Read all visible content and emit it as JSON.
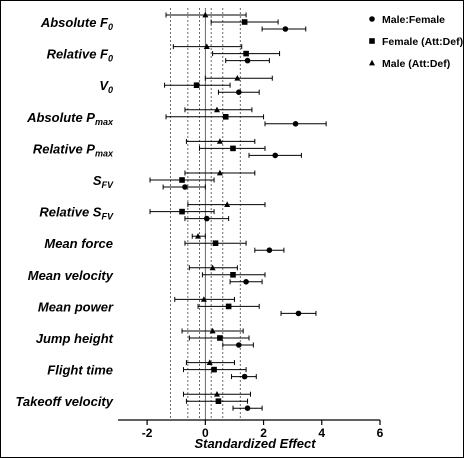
{
  "chart_data": {
    "type": "forest",
    "xlabel": "Standardized Effect",
    "xlim": [
      -3,
      6
    ],
    "xticks": [
      -2,
      0,
      2,
      4,
      6
    ],
    "reference_lines": {
      "solid": [
        0
      ],
      "dashed": [
        -1.2,
        -0.6,
        -0.2,
        0.2,
        0.6,
        1.2
      ]
    },
    "legend_position": "top-right",
    "series": [
      {
        "name": "Male:Female",
        "marker": "circle"
      },
      {
        "name": "Female (Att:Def)",
        "marker": "square"
      },
      {
        "name": "Male (Att:Def)",
        "marker": "triangle"
      }
    ],
    "categories": [
      {
        "label": "Absolute F",
        "sub": "0",
        "values": [
          {
            "series": "Male (Att:Def)",
            "est": 0.0,
            "lo": -1.35,
            "hi": 1.4
          },
          {
            "series": "Female (Att:Def)",
            "est": 1.35,
            "lo": 0.2,
            "hi": 2.5
          },
          {
            "series": "Male:Female",
            "est": 2.75,
            "lo": 1.95,
            "hi": 3.45
          }
        ]
      },
      {
        "label": "Relative F",
        "sub": "0",
        "values": [
          {
            "series": "Male (Att:Def)",
            "est": 0.05,
            "lo": -1.1,
            "hi": 1.25
          },
          {
            "series": "Female (Att:Def)",
            "est": 1.4,
            "lo": 0.25,
            "hi": 2.55
          },
          {
            "series": "Male:Female",
            "est": 1.45,
            "lo": 0.7,
            "hi": 2.2
          }
        ]
      },
      {
        "label": "V",
        "sub": "0",
        "values": [
          {
            "series": "Male (Att:Def)",
            "est": 1.1,
            "lo": 0.0,
            "hi": 2.3
          },
          {
            "series": "Female (Att:Def)",
            "est": -0.3,
            "lo": -1.4,
            "hi": 0.85
          },
          {
            "series": "Male:Female",
            "est": 1.15,
            "lo": 0.45,
            "hi": 1.85
          }
        ]
      },
      {
        "label": "Absolute P",
        "sub": "max",
        "values": [
          {
            "series": "Male (Att:Def)",
            "est": 0.4,
            "lo": -0.7,
            "hi": 1.6
          },
          {
            "series": "Female (Att:Def)",
            "est": 0.7,
            "lo": -1.35,
            "hi": 2.0
          },
          {
            "series": "Male:Female",
            "est": 3.1,
            "lo": 2.05,
            "hi": 4.15
          }
        ]
      },
      {
        "label": "Relative P",
        "sub": "max",
        "values": [
          {
            "series": "Male (Att:Def)",
            "est": 0.5,
            "lo": -0.65,
            "hi": 1.7
          },
          {
            "series": "Female (Att:Def)",
            "est": 0.95,
            "lo": -0.2,
            "hi": 2.05
          },
          {
            "series": "Male:Female",
            "est": 2.4,
            "lo": 1.5,
            "hi": 3.3
          }
        ]
      },
      {
        "label": "S",
        "sub": "FV",
        "values": [
          {
            "series": "Male (Att:Def)",
            "est": 0.5,
            "lo": -0.7,
            "hi": 1.7
          },
          {
            "series": "Female (Att:Def)",
            "est": -0.8,
            "lo": -1.9,
            "hi": 0.3
          },
          {
            "series": "Male:Female",
            "est": -0.7,
            "lo": -1.45,
            "hi": 0.0
          }
        ]
      },
      {
        "label": "Relative S",
        "sub": "FV",
        "values": [
          {
            "series": "Male (Att:Def)",
            "est": 0.75,
            "lo": -0.6,
            "hi": 2.05
          },
          {
            "series": "Female (Att:Def)",
            "est": -0.8,
            "lo": -1.9,
            "hi": 0.3
          },
          {
            "series": "Male:Female",
            "est": 0.05,
            "lo": -0.7,
            "hi": 0.8
          }
        ]
      },
      {
        "label": "Mean force",
        "sub": "",
        "values": [
          {
            "series": "Male (Att:Def)",
            "est": -0.25,
            "lo": -0.45,
            "hi": 0.0
          },
          {
            "series": "Female (Att:Def)",
            "est": 0.35,
            "lo": -0.7,
            "hi": 1.4
          },
          {
            "series": "Male:Female",
            "est": 2.2,
            "lo": 1.7,
            "hi": 2.7
          }
        ]
      },
      {
        "label": "Mean velocity",
        "sub": "",
        "values": [
          {
            "series": "Male (Att:Def)",
            "est": 0.25,
            "lo": -0.55,
            "hi": 1.1
          },
          {
            "series": "Female (Att:Def)",
            "est": 0.95,
            "lo": -0.1,
            "hi": 2.05
          },
          {
            "series": "Male:Female",
            "est": 1.4,
            "lo": 0.85,
            "hi": 1.95
          }
        ]
      },
      {
        "label": "Mean power",
        "sub": "",
        "values": [
          {
            "series": "Male (Att:Def)",
            "est": -0.05,
            "lo": -1.05,
            "hi": 1.0
          },
          {
            "series": "Female (Att:Def)",
            "est": 0.8,
            "lo": -0.25,
            "hi": 1.85
          },
          {
            "series": "Male:Female",
            "est": 3.2,
            "lo": 2.6,
            "hi": 3.8
          }
        ]
      },
      {
        "label": "Jump height",
        "sub": "",
        "values": [
          {
            "series": "Male (Att:Def)",
            "est": 0.25,
            "lo": -0.8,
            "hi": 1.3
          },
          {
            "series": "Female (Att:Def)",
            "est": 0.5,
            "lo": -0.55,
            "hi": 1.5
          },
          {
            "series": "Male:Female",
            "est": 1.15,
            "lo": 0.6,
            "hi": 1.65
          }
        ]
      },
      {
        "label": "Flight time",
        "sub": "",
        "values": [
          {
            "series": "Male (Att:Def)",
            "est": 0.15,
            "lo": -0.65,
            "hi": 1.0
          },
          {
            "series": "Female (Att:Def)",
            "est": 0.3,
            "lo": -0.75,
            "hi": 1.4
          },
          {
            "series": "Male:Female",
            "est": 1.35,
            "lo": 0.9,
            "hi": 1.75
          }
        ]
      },
      {
        "label": "Takeoff velocity",
        "sub": "",
        "values": [
          {
            "series": "Male (Att:Def)",
            "est": 0.4,
            "lo": -0.75,
            "hi": 1.55
          },
          {
            "series": "Female (Att:Def)",
            "est": 0.45,
            "lo": -0.65,
            "hi": 1.45
          },
          {
            "series": "Male:Female",
            "est": 1.45,
            "lo": 0.95,
            "hi": 1.95
          }
        ]
      }
    ]
  }
}
